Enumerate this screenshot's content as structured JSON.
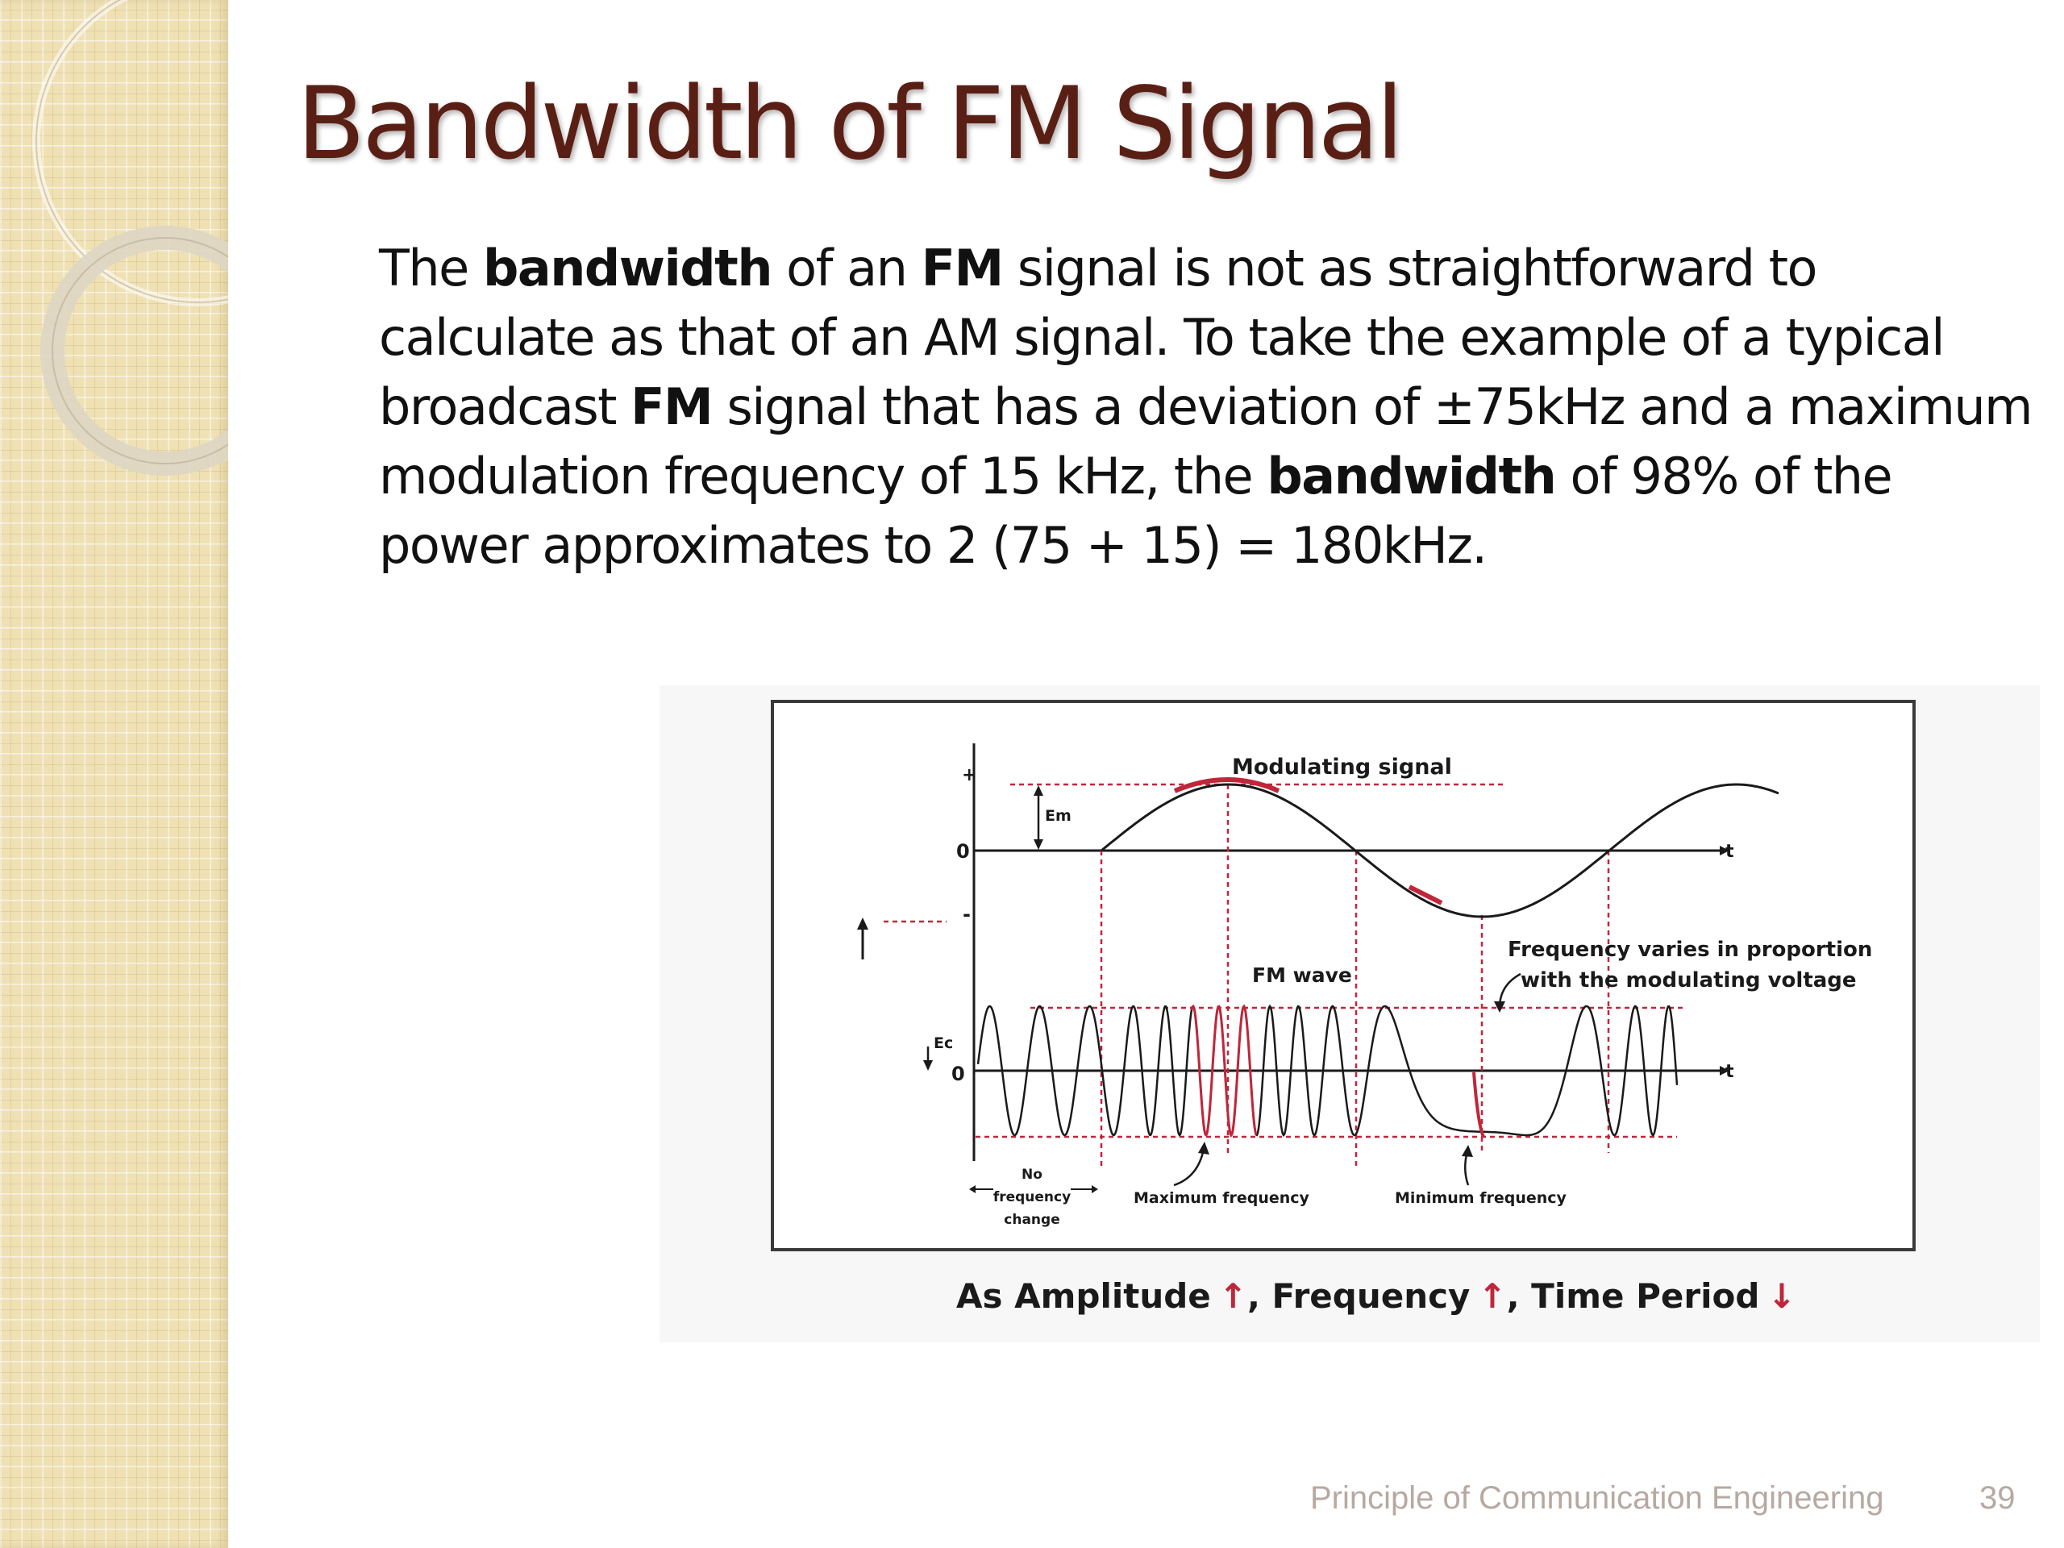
{
  "slide": {
    "title": "Bandwidth of FM Signal",
    "body": [
      [
        {
          "t": "The "
        },
        {
          "t": "bandwidth",
          "b": true
        },
        {
          "t": " of an "
        },
        {
          "t": "FM",
          "b": true
        },
        {
          "t": " signal is not as straightforward to"
        }
      ],
      [
        {
          "t": "calculate as that of an AM signal. To take the example of a typical"
        }
      ],
      [
        {
          "t": "broadcast "
        },
        {
          "t": "FM",
          "b": true
        },
        {
          "t": " signal that has a deviation of ±75kHz and a maximum"
        }
      ],
      [
        {
          "t": "modulation frequency of 15 kHz, the "
        },
        {
          "t": "bandwidth",
          "b": true
        },
        {
          "t": " of 98% of the"
        }
      ],
      [
        {
          "t": "power approximates to 2 (75 + 15) = 180kHz."
        }
      ]
    ],
    "footer": "Principle of Communication Engineering",
    "page_number": "39"
  },
  "diagram": {
    "labels": {
      "modulating_signal": "Modulating signal",
      "em": "Em",
      "plus": "+",
      "zero": "0",
      "minus": "-",
      "t_axis": "t",
      "fm_wave": "FM wave",
      "ec": "Ec",
      "freq_varies_1": "Frequency varies in proportion",
      "freq_varies_2": "with the modulating voltage",
      "no_freq_1": "No",
      "no_freq_2": "frequency",
      "no_freq_3": "change",
      "max_freq": "Maximum frequency",
      "min_freq": "Minimum frequency"
    },
    "caption": {
      "part1": "As Amplitude",
      "arrow_up": "↑",
      "part2": ", Frequency",
      "part3": ", Time Period",
      "arrow_down": "↓"
    },
    "colors": {
      "dashed_guides": "#c0263a",
      "highlight": "#c0263a",
      "ink": "#1a1a1a"
    }
  }
}
